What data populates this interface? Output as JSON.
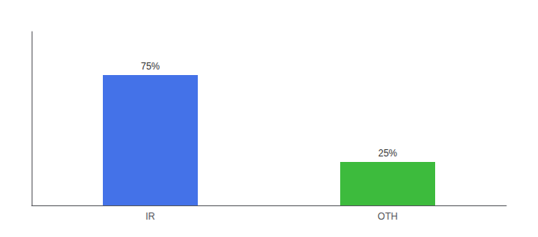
{
  "chart_data": {
    "type": "bar",
    "categories": [
      "IR",
      "OTH"
    ],
    "values": [
      75,
      25
    ],
    "value_labels": [
      "75%",
      "25%"
    ],
    "colors": [
      "#4472e8",
      "#3dbb3d"
    ],
    "ylim": [
      0,
      100
    ],
    "yticks": [],
    "grid": false,
    "data_labels": true,
    "tick_labels": "x"
  }
}
